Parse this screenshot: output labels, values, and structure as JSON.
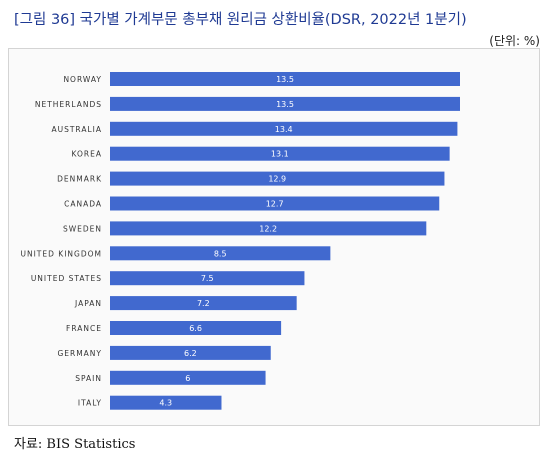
{
  "header": {
    "title": "[그림 36] 국가별 가계부문 총부채 원리금 상환비율(DSR, 2022년 1분기)",
    "unit": "(단위: %)"
  },
  "footer": {
    "source": "자료: BIS Statistics"
  },
  "chart_data": {
    "type": "bar",
    "orientation": "horizontal",
    "categories": [
      "NORWAY",
      "NETHERLANDS",
      "AUSTRALIA",
      "KOREA",
      "DENMARK",
      "CANADA",
      "SWEDEN",
      "UNITED KINGDOM",
      "UNITED STATES",
      "JAPAN",
      "FRANCE",
      "GERMANY",
      "SPAIN",
      "ITALY"
    ],
    "values": [
      13.5,
      13.5,
      13.4,
      13.1,
      12.9,
      12.7,
      12.2,
      8.5,
      7.5,
      7.2,
      6.6,
      6.2,
      6,
      4.3
    ],
    "value_labels": [
      "13.5",
      "13.5",
      "13.4",
      "13.1",
      "12.9",
      "12.7",
      "12.2",
      "8.5",
      "7.5",
      "7.2",
      "6.6",
      "6.2",
      "6",
      "4.3"
    ],
    "bar_color": "#4169cf",
    "xlim": [
      0,
      13.5
    ],
    "grid": false,
    "legend": "none"
  }
}
